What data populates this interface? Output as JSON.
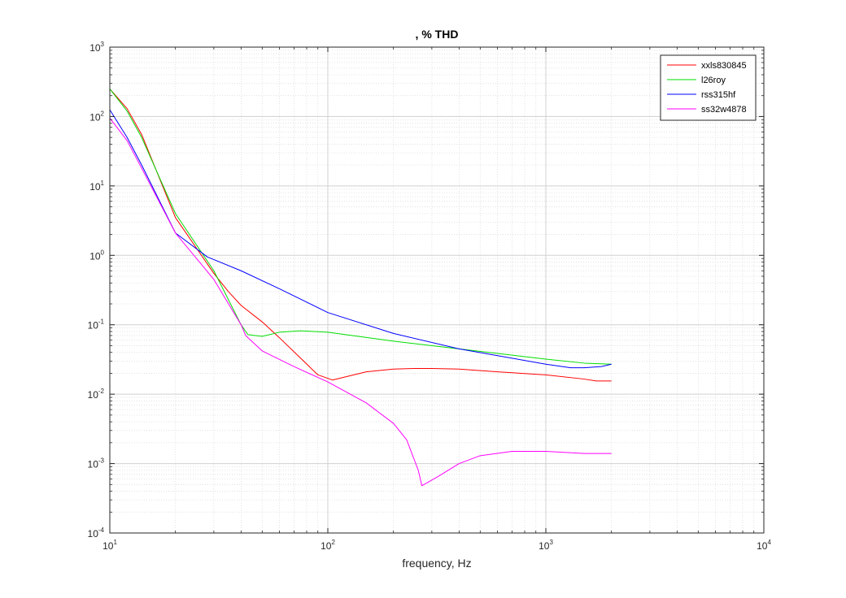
{
  "chart_data": {
    "type": "line",
    "title": ", % THD",
    "xlabel": "frequency, Hz",
    "ylabel": "",
    "xscale": "log",
    "yscale": "log",
    "xlim": [
      10,
      10000
    ],
    "ylim": [
      0.0001,
      1000
    ],
    "grid": true,
    "minor_grid": true,
    "legend_position": "top-right",
    "x_ticks": [
      {
        "base": "10",
        "exp": "1",
        "value": 10
      },
      {
        "base": "10",
        "exp": "2",
        "value": 100
      },
      {
        "base": "10",
        "exp": "3",
        "value": 1000
      },
      {
        "base": "10",
        "exp": "4",
        "value": 10000
      }
    ],
    "y_ticks": [
      {
        "base": "10",
        "exp": "-4",
        "value": 0.0001
      },
      {
        "base": "10",
        "exp": "-3",
        "value": 0.001
      },
      {
        "base": "10",
        "exp": "-2",
        "value": 0.01
      },
      {
        "base": "10",
        "exp": "-1",
        "value": 0.1
      },
      {
        "base": "10",
        "exp": "0",
        "value": 1
      },
      {
        "base": "10",
        "exp": "1",
        "value": 10
      },
      {
        "base": "10",
        "exp": "2",
        "value": 100
      },
      {
        "base": "10",
        "exp": "3",
        "value": 1000
      }
    ],
    "series": [
      {
        "name": "xxls830845",
        "color": "#ff0000",
        "points": [
          [
            10,
            250
          ],
          [
            12,
            130
          ],
          [
            14,
            55
          ],
          [
            20,
            3.5
          ],
          [
            30,
            0.55
          ],
          [
            35,
            0.3
          ],
          [
            40,
            0.19
          ],
          [
            50,
            0.11
          ],
          [
            60,
            0.065
          ],
          [
            90,
            0.019
          ],
          [
            105,
            0.016
          ],
          [
            150,
            0.021
          ],
          [
            200,
            0.023
          ],
          [
            250,
            0.0235
          ],
          [
            300,
            0.0235
          ],
          [
            400,
            0.023
          ],
          [
            600,
            0.021
          ],
          [
            1000,
            0.019
          ],
          [
            1500,
            0.0165
          ],
          [
            1700,
            0.0155
          ],
          [
            2000,
            0.0155
          ]
        ]
      },
      {
        "name": "l26roy",
        "color": "#00dd00",
        "points": [
          [
            10,
            250
          ],
          [
            12,
            120
          ],
          [
            14,
            50
          ],
          [
            20,
            4
          ],
          [
            30,
            0.6
          ],
          [
            40,
            0.1
          ],
          [
            43,
            0.072
          ],
          [
            50,
            0.068
          ],
          [
            60,
            0.078
          ],
          [
            75,
            0.082
          ],
          [
            100,
            0.078
          ],
          [
            200,
            0.058
          ],
          [
            400,
            0.045
          ],
          [
            1000,
            0.032
          ],
          [
            1500,
            0.028
          ],
          [
            2000,
            0.027
          ]
        ]
      },
      {
        "name": "rss315hf",
        "color": "#0000ff",
        "points": [
          [
            10,
            125
          ],
          [
            12,
            50
          ],
          [
            14,
            20
          ],
          [
            20,
            2.1
          ],
          [
            28,
            0.95
          ],
          [
            40,
            0.6
          ],
          [
            60,
            0.33
          ],
          [
            100,
            0.15
          ],
          [
            200,
            0.075
          ],
          [
            400,
            0.045
          ],
          [
            700,
            0.033
          ],
          [
            1000,
            0.027
          ],
          [
            1300,
            0.024
          ],
          [
            1500,
            0.024
          ],
          [
            1800,
            0.025
          ],
          [
            2000,
            0.027
          ]
        ]
      },
      {
        "name": "ss32w4878",
        "color": "#ff00ff",
        "points": [
          [
            10,
            95
          ],
          [
            12,
            45
          ],
          [
            14,
            18
          ],
          [
            20,
            2.1
          ],
          [
            30,
            0.45
          ],
          [
            40,
            0.1
          ],
          [
            42,
            0.07
          ],
          [
            50,
            0.042
          ],
          [
            70,
            0.025
          ],
          [
            100,
            0.015
          ],
          [
            150,
            0.0075
          ],
          [
            200,
            0.0038
          ],
          [
            230,
            0.0022
          ],
          [
            260,
            0.0008
          ],
          [
            270,
            0.00048
          ],
          [
            320,
            0.00065
          ],
          [
            400,
            0.001
          ],
          [
            500,
            0.0013
          ],
          [
            700,
            0.0015
          ],
          [
            1000,
            0.0015
          ],
          [
            1500,
            0.0014
          ],
          [
            2000,
            0.0014
          ]
        ]
      }
    ]
  }
}
